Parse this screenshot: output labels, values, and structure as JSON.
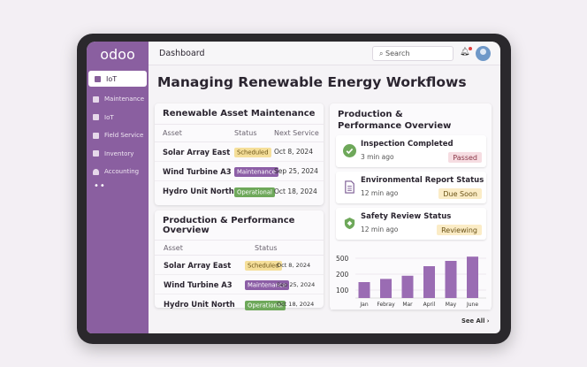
{
  "app": {
    "logo": "odoo",
    "breadcrumb": "Dashboard",
    "search_placeholder": "Search",
    "title": "Managing Renewable Energy Workflows"
  },
  "sidebar": {
    "items": [
      {
        "label": "IoT",
        "active": true
      },
      {
        "label": "Maintenance"
      },
      {
        "label": "IoT"
      },
      {
        "label": "Field Service"
      },
      {
        "label": "Inventory"
      },
      {
        "label": "Accounting"
      }
    ],
    "more": "••"
  },
  "maintenance": {
    "title": "Renewable Asset Maintenance",
    "headers": [
      "Asset",
      "Status",
      "Next Service"
    ],
    "rows": [
      {
        "asset": "Solar Array East",
        "status": "Scheduled",
        "date": "Oct 8, 2024"
      },
      {
        "asset": "Wind Turbine A3",
        "status": "Maintenance",
        "date": "Sep 25, 2024"
      },
      {
        "asset": "Hydro Unit North",
        "status": "Operational",
        "date": "Oct 18, 2024"
      }
    ]
  },
  "production_table": {
    "title": "Production & Performance Overview",
    "headers": [
      "Asset",
      "Status"
    ],
    "rows": [
      {
        "asset": "Solar Array East",
        "status": "Scheduled",
        "date": "Oct 8, 2024"
      },
      {
        "asset": "Wind Turbine A3",
        "status": "Maintenance",
        "date": "Sep 25, 2024"
      },
      {
        "asset": "Hydro Unit North",
        "status": "Operational",
        "date": "Oct 18, 2024"
      }
    ]
  },
  "activity": {
    "title": "Production & Performance Overview",
    "items": [
      {
        "title": "Inspection Completed",
        "time": "3 min ago",
        "status": "Passed",
        "icon": "check-circle-icon"
      },
      {
        "title": "Environmental Report Status",
        "time": "12 min ago",
        "status": "Due Soon",
        "icon": "document-icon"
      },
      {
        "title": "Safety Review Status",
        "time": "12 min ago",
        "status": "Reviewing",
        "icon": "shield-icon"
      }
    ]
  },
  "see_all": "See All ›",
  "colors": {
    "brand": "#8a5fa0",
    "bar": "#9a6cb3"
  },
  "chart_data": {
    "type": "bar",
    "categories": [
      "Jan",
      "Febray",
      "Mar",
      "April",
      "May",
      "June"
    ],
    "values": [
      150,
      170,
      190,
      350,
      450,
      530
    ],
    "yticks": [
      100,
      200,
      500
    ],
    "grid": true
  }
}
